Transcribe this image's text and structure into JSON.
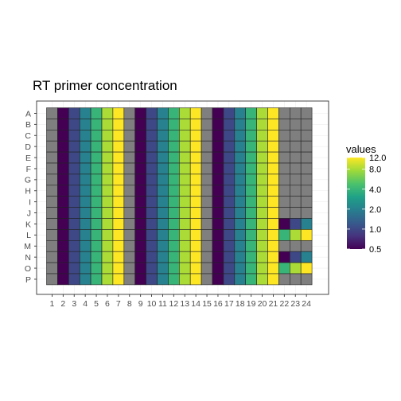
{
  "chart_data": {
    "type": "heatmap",
    "title": "RT primer concentration",
    "xlabel": "",
    "ylabel": "",
    "x_categories": [
      "1",
      "2",
      "3",
      "4",
      "5",
      "6",
      "7",
      "8",
      "9",
      "10",
      "11",
      "12",
      "13",
      "14",
      "15",
      "16",
      "17",
      "18",
      "19",
      "20",
      "21",
      "22",
      "23",
      "24"
    ],
    "y_categories": [
      "A",
      "B",
      "C",
      "D",
      "E",
      "F",
      "G",
      "H",
      "I",
      "J",
      "K",
      "L",
      "M",
      "N",
      "O",
      "P"
    ],
    "color_scale": "viridis",
    "scale": "log",
    "na_color": "#7f7f7f",
    "legend": {
      "title": "values",
      "position": "right",
      "ticks": [
        0.5,
        1.0,
        2.0,
        4.0,
        8.0,
        12.0
      ],
      "tick_labels": [
        "0.5",
        "1.0",
        "2.0",
        "4.0",
        "8.0",
        "12.0"
      ],
      "range": [
        0.5,
        12.0
      ]
    },
    "grid": true,
    "columns_1_to_21_all_rows": [
      null,
      0.5,
      1.0,
      2.0,
      4.0,
      8.0,
      12.0,
      null,
      0.5,
      1.0,
      2.0,
      4.0,
      8.0,
      12.0,
      null,
      0.5,
      1.0,
      2.0,
      4.0,
      8.0,
      12.0
    ],
    "columns_22_to_24_by_row": {
      "A": [
        null,
        null,
        null
      ],
      "B": [
        null,
        null,
        null
      ],
      "C": [
        null,
        null,
        null
      ],
      "D": [
        null,
        null,
        null
      ],
      "E": [
        null,
        null,
        null
      ],
      "F": [
        null,
        null,
        null
      ],
      "G": [
        null,
        null,
        null
      ],
      "H": [
        null,
        null,
        null
      ],
      "I": [
        null,
        null,
        null
      ],
      "J": [
        null,
        null,
        null
      ],
      "K": [
        0.5,
        1.0,
        2.0
      ],
      "L": [
        4.0,
        8.0,
        12.0
      ],
      "M": [
        null,
        null,
        null
      ],
      "N": [
        0.5,
        1.0,
        2.0
      ],
      "O": [
        4.0,
        8.0,
        12.0
      ],
      "P": [
        null,
        null,
        null
      ]
    }
  }
}
